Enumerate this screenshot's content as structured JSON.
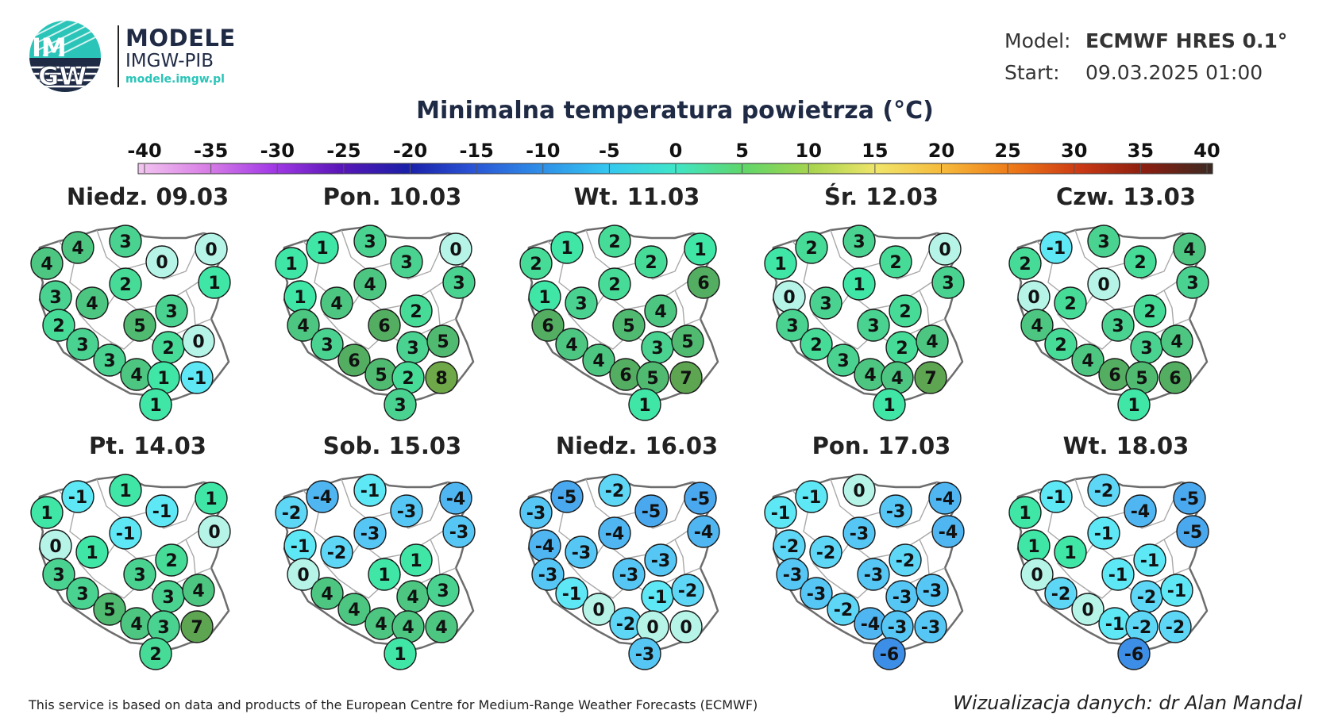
{
  "logo": {
    "line1": "IM",
    "line2": "GW",
    "color": "#2bc4b8"
  },
  "brand": {
    "title": "MODELE",
    "subtitle": "IMGW-PIB",
    "url": "modele.imgw.pl"
  },
  "model_info": {
    "model_label": "Model:",
    "model_value": "ECMWF HRES 0.1°",
    "start_label": "Start:",
    "start_value": "09.03.2025 01:00"
  },
  "title": "Minimalna temperatura powietrza (°C)",
  "scale": {
    "ticks": [
      "-40",
      "-35",
      "-30",
      "-25",
      "-20",
      "-15",
      "-10",
      "-5",
      "0",
      "5",
      "10",
      "15",
      "20",
      "25",
      "30",
      "35",
      "40"
    ],
    "colors": [
      "#f3c6f0",
      "#d980e6",
      "#a23ae6",
      "#5a16b8",
      "#1a1fa8",
      "#2a55d6",
      "#2f8fe8",
      "#34c7f0",
      "#3fe6c8",
      "#5fd66a",
      "#a6d44e",
      "#f0e56a",
      "#f6b93a",
      "#ee7a18",
      "#cc3a14",
      "#8a1e10",
      "#3a2a22"
    ]
  },
  "panels": [
    {
      "label": "Niedz. 09.03",
      "values": [
        4,
        4,
        3,
        0,
        0,
        1,
        3,
        4,
        2,
        3,
        5,
        2,
        3,
        2,
        0,
        3,
        4,
        1,
        -1,
        1
      ]
    },
    {
      "label": "Pon. 10.03",
      "values": [
        1,
        1,
        3,
        3,
        0,
        3,
        1,
        4,
        4,
        2,
        6,
        4,
        3,
        3,
        5,
        6,
        5,
        2,
        8,
        3
      ]
    },
    {
      "label": "Wt. 11.03",
      "values": [
        2,
        1,
        2,
        2,
        1,
        6,
        1,
        3,
        2,
        4,
        5,
        6,
        4,
        3,
        5,
        4,
        6,
        5,
        7,
        1
      ]
    },
    {
      "label": "Śr. 12.03",
      "values": [
        1,
        2,
        3,
        2,
        0,
        3,
        0,
        3,
        1,
        2,
        3,
        3,
        2,
        2,
        4,
        3,
        4,
        4,
        7,
        1
      ]
    },
    {
      "label": "Czw. 13.03",
      "values": [
        2,
        -1,
        3,
        2,
        4,
        3,
        0,
        2,
        0,
        2,
        3,
        4,
        2,
        3,
        4,
        4,
        6,
        5,
        6,
        1
      ]
    },
    {
      "label": "Pt. 14.03",
      "values": [
        1,
        -1,
        1,
        -1,
        1,
        0,
        0,
        1,
        -1,
        2,
        3,
        3,
        3,
        3,
        4,
        5,
        4,
        3,
        7,
        2
      ]
    },
    {
      "label": "Sob. 15.03",
      "values": [
        -2,
        -4,
        -1,
        -3,
        -4,
        -3,
        -1,
        -2,
        -3,
        1,
        1,
        0,
        4,
        4,
        3,
        4,
        4,
        4,
        4,
        1
      ]
    },
    {
      "label": "Niedz. 16.03",
      "values": [
        -3,
        -5,
        -2,
        -5,
        -5,
        -4,
        -4,
        -3,
        -4,
        -3,
        -3,
        -3,
        -1,
        -1,
        -2,
        0,
        -2,
        0,
        0,
        -3
      ]
    },
    {
      "label": "Pon. 17.03",
      "values": [
        -1,
        -1,
        0,
        -3,
        -4,
        -4,
        -2,
        -2,
        -3,
        -2,
        -3,
        -3,
        -3,
        -3,
        -3,
        -2,
        -4,
        -3,
        -3,
        -6
      ]
    },
    {
      "label": "Wt. 18.03",
      "values": [
        1,
        -1,
        -2,
        -4,
        -5,
        -5,
        1,
        1,
        -1,
        -1,
        -1,
        0,
        -2,
        -2,
        -1,
        0,
        -1,
        -2,
        -2,
        -6
      ]
    }
  ],
  "footer": {
    "left": "This service is based on data and products of the European Centre for Medium-Range Weather Forecasts (ECMWF)",
    "right": "Wizualizacja danych: dr Alan Mandal"
  }
}
